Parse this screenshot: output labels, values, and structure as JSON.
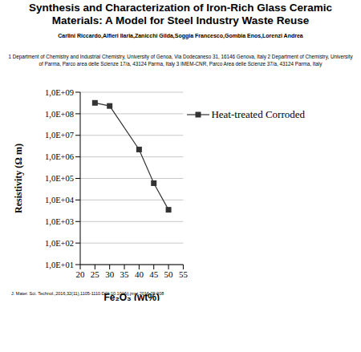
{
  "title": "Synthesis and Characterization of Iron-Rich Glass Ceramic Materials: A Model for Steel Industry Waste Reuse",
  "authors": "Carlini Riccardo,Alfieri Ilaria,Zanicchi Gilda,Soggia Francesco,Gombia Enos,Lorenzi Andrea",
  "affiliations": "1 Department of Chemistry and Industrial Chemistry, University of Genoa, Via Dodecaneso 31, 16146 Genova, Italy 2 Department of Chemistry, University of Parma, Parco area delle Scienze 17/a, 43124 Parma, Italy 3 IMEM-CNR, Parco Area delle Scienze 37/a, 43124 Parma, Italy",
  "citation": "J. Mater. Sci. Technol.,2016,32(11),1105-1110.DOI:10.1016/j.jmst.2016.09.008",
  "chart_data": {
    "type": "line",
    "x_label": "Fe₂O₃ (wt%)",
    "y_label": "Resistivity (Ω m)",
    "x": [
      25,
      30,
      40,
      45,
      50
    ],
    "series": [
      {
        "name": "Heat-treated Corroded",
        "color": "#333333",
        "marker": "square",
        "values": [
          320000000,
          230000000,
          2200000,
          60000,
          3500
        ]
      }
    ],
    "xlim": [
      20,
      55
    ],
    "xticks": [
      20,
      25,
      30,
      35,
      40,
      45,
      50,
      55
    ],
    "ylim": [
      10,
      1000000000
    ],
    "yticks": [
      {
        "value": 10,
        "label": "1,0E+01"
      },
      {
        "value": 100,
        "label": "1,0E+02"
      },
      {
        "value": 1000,
        "label": "1,0E+03"
      },
      {
        "value": 10000,
        "label": "1,0E+04"
      },
      {
        "value": 100000,
        "label": "1,0E+05"
      },
      {
        "value": 1000000,
        "label": "1,0E+06"
      },
      {
        "value": 10000000,
        "label": "1,0E+07"
      },
      {
        "value": 100000000,
        "label": "1,0E+08"
      },
      {
        "value": 1000000000,
        "label": "1,0E+09"
      }
    ],
    "log": "y",
    "grid": "y",
    "legend": "upper right"
  }
}
